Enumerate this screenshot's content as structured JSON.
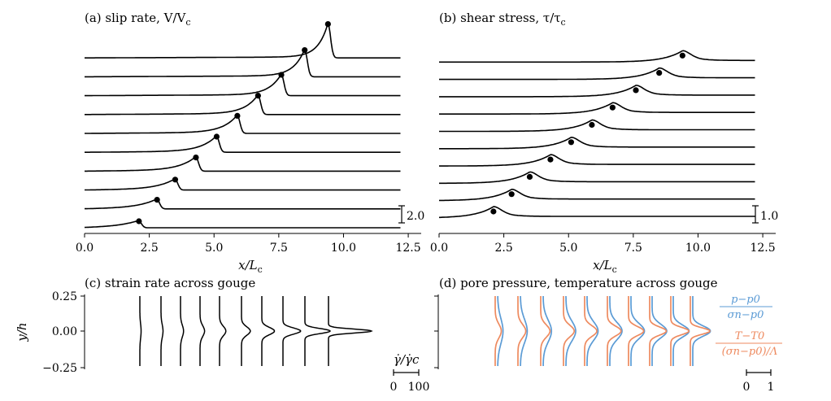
{
  "figure": {
    "title_a": "(a) slip rate, V/V",
    "title_a_sub": "c",
    "title_b": "(b) shear stress, τ/τ",
    "title_b_sub": "c",
    "title_c": "(c) strain rate across gouge",
    "title_d": "(d) pore pressure, temperature across gouge",
    "xlabel_main": "x/L",
    "xlabel_sub": "c",
    "ylabel_c": "y/h",
    "scalebar_a_label": "2.0",
    "scalebar_b_label": "1.0",
    "scalebar_c_label": "γ̇/γ̇c",
    "scalebar_c_ticks": [
      "0",
      "100"
    ],
    "scalebar_d_ticks": [
      "0",
      "1"
    ],
    "legend_p_num": "p−p0",
    "legend_p_den": "σn−p0",
    "legend_t_num": "T−T0",
    "legend_t_den": "(σn−p0)/Λ"
  },
  "colors": {
    "line": "#000000",
    "pore_pressure": "#5b9bd5",
    "temperature": "#ee8a5f"
  },
  "chart_data": [
    {
      "type": "line",
      "title": "(a) slip rate, V/Vc",
      "xlabel": "x/Lc",
      "xlim": [
        0,
        13
      ],
      "xticks": [
        "0.0",
        "2.5",
        "5.0",
        "7.5",
        "10.0",
        "12.5"
      ],
      "tip_positions": [
        2.1,
        2.8,
        3.5,
        4.3,
        5.1,
        5.9,
        6.7,
        7.6,
        8.5,
        9.4
      ],
      "peak_heights": [
        0.5,
        0.7,
        0.8,
        1.05,
        1.2,
        1.35,
        1.45,
        1.6,
        2.05,
        2.6
      ],
      "scale_bar": 2.0
    },
    {
      "type": "line",
      "title": "(b) shear stress, τ/τc",
      "xlabel": "x/Lc",
      "xlim": [
        0,
        13
      ],
      "xticks": [
        "0.0",
        "2.5",
        "5.0",
        "7.5",
        "10.0",
        "12.5"
      ],
      "tip_positions": [
        2.1,
        2.8,
        3.5,
        4.3,
        5.1,
        5.9,
        6.7,
        7.6,
        8.5,
        9.4
      ],
      "scale_bar": 1.0
    },
    {
      "type": "line",
      "title": "(c) strain rate across gouge",
      "ylabel": "y/h",
      "ylim": [
        -0.25,
        0.25
      ],
      "yticks": [
        "0.25",
        "0.00",
        "−0.25"
      ],
      "peak_strain_rate": [
        5,
        8,
        12,
        18,
        25,
        35,
        50,
        70,
        100,
        170
      ],
      "scale_bar": [
        0,
        100
      ]
    },
    {
      "type": "line",
      "title": "(d) pore pressure, temperature across gouge",
      "series": [
        {
          "name": "p−p0 / (σn−p0)",
          "peak": [
            0.22,
            0.28,
            0.34,
            0.4,
            0.45,
            0.5,
            0.55,
            0.6,
            0.65,
            0.72
          ]
        },
        {
          "name": "T−T0 / ((σn−p0)/Λ)",
          "peak": [
            0.25,
            0.32,
            0.38,
            0.44,
            0.5,
            0.56,
            0.62,
            0.68,
            0.74,
            0.8
          ]
        }
      ],
      "scale_bar": [
        0,
        1
      ]
    }
  ]
}
